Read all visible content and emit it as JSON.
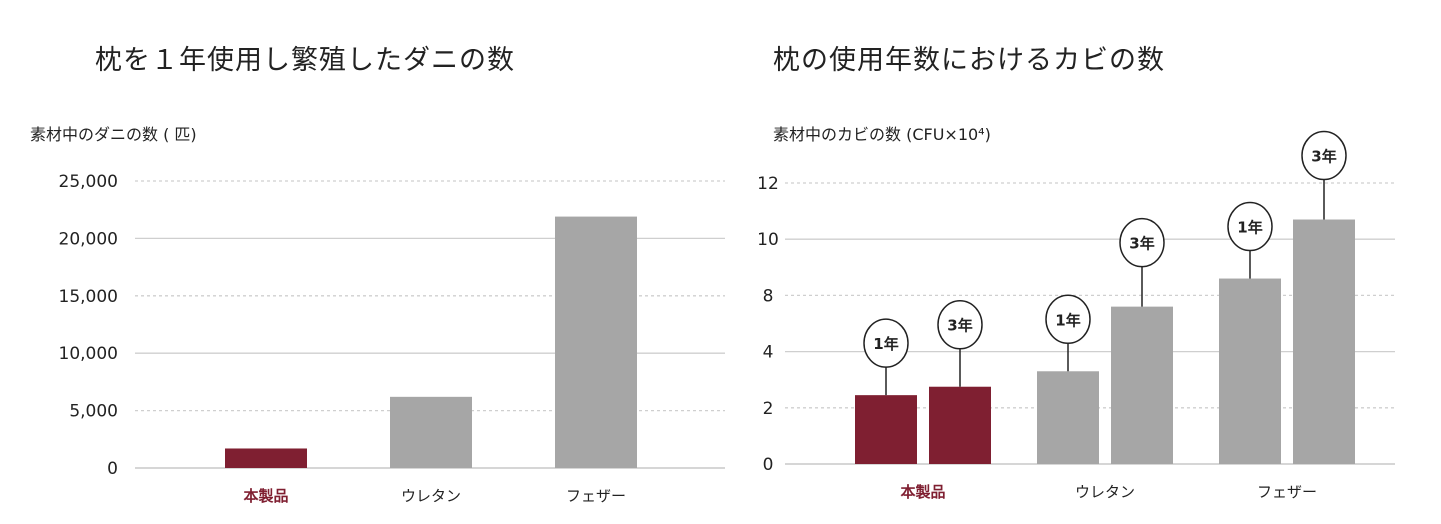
{
  "chart_data": [
    {
      "type": "bar",
      "title": "枕を１年使用し繁殖したダニの数",
      "ylabel": "素材中のダニの数 ( 匹)",
      "xlabel": "",
      "categories": [
        "本製品",
        "ウレタン",
        "フェザー"
      ],
      "values": [
        1700,
        6200,
        21900
      ],
      "ylim": [
        0,
        25000
      ],
      "yticks": [
        "0",
        "5,000",
        "10,000",
        "15,000",
        "20,000",
        "25,000"
      ],
      "grid": true,
      "colors": [
        "#7f1f31",
        "#a6a6a6",
        "#a6a6a6"
      ],
      "highlight_label_color": "#7f1f31"
    },
    {
      "type": "bar",
      "title": "枕の使用年数におけるカビの数",
      "ylabel": "素材中のカビの数 (CFU×10⁴)",
      "xlabel": "",
      "categories": [
        "本製品",
        "ウレタン",
        "フェザー"
      ],
      "series": [
        {
          "name": "1年",
          "values": [
            2.45,
            3.3,
            8.6
          ]
        },
        {
          "name": "3年",
          "values": [
            2.75,
            7.2,
            10.7
          ]
        }
      ],
      "yticks": [
        "0",
        "2",
        "4",
        "8",
        "10",
        "12"
      ],
      "ylim": [
        0,
        12
      ],
      "grid": true,
      "colors": [
        "#7f1f31",
        "#a6a6a6",
        "#a6a6a6"
      ],
      "highlight_label_color": "#7f1f31"
    }
  ]
}
